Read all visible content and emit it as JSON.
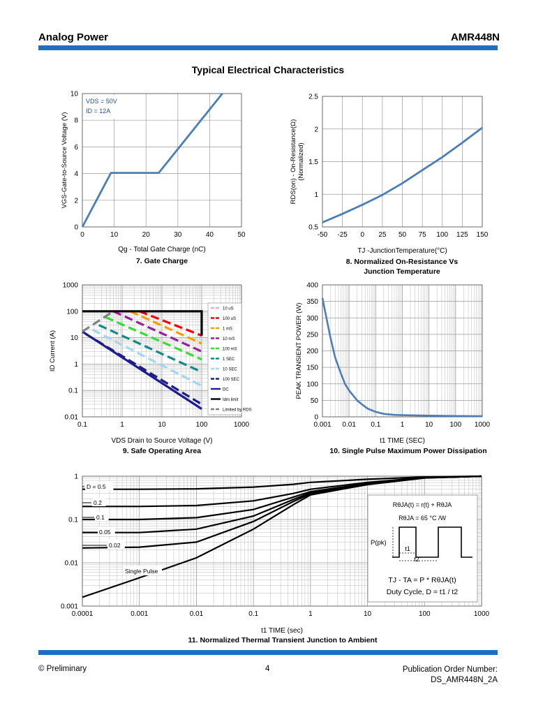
{
  "header": {
    "company": "Analog Power",
    "part": "AMR448N"
  },
  "page_title": "Typical Electrical Characteristics",
  "captions": {
    "c7": "7. Gate Charge",
    "c8_line1": "8. Normalized On-Resistance Vs",
    "c8_line2": "Junction Temperature",
    "c9": "9. Safe Operating Area",
    "c10": "10. Single Pulse Maximum Power Dissipation",
    "c11": "11. Normalized Thermal Transient Junction to Ambient"
  },
  "footer": {
    "left": "© Preliminary",
    "page": "4",
    "order_label": "Publication Order Number:",
    "order_number": "DS_AMR448N_2A"
  },
  "colors": {
    "accent": "#1f6fc0",
    "curve": "#4a7ebb",
    "grid": "#9a9a9a"
  },
  "chart_data": [
    {
      "id": "gate-charge",
      "type": "line",
      "xlabel": "Qg - Total Gate Charge (nC)",
      "ylabel": "VGS-Gate-to-Source Voltage (V)",
      "xlim": [
        0,
        50
      ],
      "ylim": [
        0,
        10
      ],
      "xticks": [
        "0",
        "10",
        "20",
        "30",
        "40",
        "50"
      ],
      "yticks": [
        "0",
        "2",
        "4",
        "6",
        "8",
        "10"
      ],
      "annotations": [
        "VDS = 50V",
        "ID = 12A"
      ],
      "series": [
        {
          "x": [
            0,
            9,
            24,
            44
          ],
          "y": [
            0,
            4.05,
            4.05,
            10
          ]
        }
      ]
    },
    {
      "id": "on-resistance",
      "type": "line",
      "xlabel": "TJ -JunctionTemperature(°C)",
      "ylabel": "RDS(on) - On-Resistance(Ω)",
      "ylabel2": "(Normalized)",
      "xlim": [
        -50,
        150
      ],
      "ylim": [
        0.5,
        2.5
      ],
      "xticks": [
        "-50",
        "-25",
        "0",
        "25",
        "50",
        "75",
        "100",
        "125",
        "150"
      ],
      "yticks": [
        "0.5",
        "1",
        "1.5",
        "2",
        "2.5"
      ],
      "series": [
        {
          "x": [
            -50,
            -25,
            0,
            25,
            50,
            75,
            100,
            125,
            150
          ],
          "y": [
            0.57,
            0.7,
            0.84,
            0.99,
            1.17,
            1.37,
            1.57,
            1.79,
            2.02
          ]
        }
      ]
    },
    {
      "id": "safe-operating-area",
      "type": "line",
      "log_x": true,
      "log_y": true,
      "xlabel": "VDS Drain to Source Voltage (V)",
      "ylabel": "ID Current (A)",
      "xlim": [
        0.1,
        1000
      ],
      "ylim": [
        0.01,
        1000
      ],
      "xticks": [
        "0.1",
        "1",
        "10",
        "100",
        "1000"
      ],
      "yticks": [
        "0.01",
        "0.1",
        "1",
        "10",
        "100",
        "1000"
      ],
      "legend_position": "right",
      "series": [
        {
          "name": "10 uS",
          "color": "#f4a6c8",
          "dash": true,
          "x": [
            0.6,
            100
          ],
          "y": [
            100,
            100
          ]
        },
        {
          "name": "100 uS",
          "color": "#ff0000",
          "dash": true,
          "x": [
            2.7,
            100
          ],
          "y": [
            100,
            12
          ]
        },
        {
          "name": "1 mS",
          "color": "#ff9a00",
          "dash": true,
          "x": [
            1.6,
            100
          ],
          "y": [
            100,
            6
          ]
        },
        {
          "name": "10 mS",
          "color": "#9b1e9b",
          "dash": true,
          "x": [
            0.6,
            100
          ],
          "y": [
            100,
            3
          ]
        },
        {
          "name": "100 mS",
          "color": "#33dd33",
          "dash": true,
          "x": [
            0.38,
            100
          ],
          "y": [
            60,
            1.5
          ]
        },
        {
          "name": "1 SEC",
          "color": "#138a8a",
          "dash": true,
          "x": [
            0.26,
            100
          ],
          "y": [
            30,
            0.5
          ]
        },
        {
          "name": "10 SEC",
          "color": "#9fd8f0",
          "dash": true,
          "x": [
            0.18,
            100
          ],
          "y": [
            20,
            0.15
          ]
        },
        {
          "name": "100 SEC",
          "color": "#1c1c8c",
          "dash": true,
          "x": [
            0.12,
            100
          ],
          "y": [
            14,
            0.03
          ]
        },
        {
          "name": "DC",
          "color": "#1c1c8c",
          "dash": false,
          "x": [
            0.1,
            100
          ],
          "y": [
            17,
            0.02
          ]
        },
        {
          "name": "Idm limit",
          "color": "#000000",
          "dash": false,
          "x": [
            0.1,
            100,
            100
          ],
          "y": [
            100,
            100,
            12
          ]
        },
        {
          "name": "Limited by RDS",
          "color": "#808080",
          "dash": true,
          "x": [
            0.1,
            0.6
          ],
          "y": [
            17,
            100
          ]
        }
      ]
    },
    {
      "id": "single-pulse-power",
      "type": "line",
      "log_x": true,
      "xlabel": "t1 TIME (SEC)",
      "ylabel": "PEAK TRANSIENT POWER (W)",
      "xlim": [
        0.001,
        1000
      ],
      "ylim": [
        0,
        400
      ],
      "xticks": [
        "0.001",
        "0.01",
        "0.1",
        "1",
        "10",
        "100",
        "1000"
      ],
      "yticks": [
        "0",
        "50",
        "100",
        "150",
        "200",
        "250",
        "300",
        "350",
        "400"
      ],
      "series": [
        {
          "x": [
            0.001,
            0.0015,
            0.002,
            0.003,
            0.005,
            0.007,
            0.01,
            0.02,
            0.03,
            0.05,
            0.1,
            0.2,
            0.5,
            1,
            10,
            100,
            1000
          ],
          "y": [
            360,
            290,
            240,
            180,
            130,
            100,
            80,
            50,
            38,
            25,
            15,
            9,
            6,
            5,
            3.5,
            2.5,
            2
          ]
        }
      ]
    },
    {
      "id": "thermal-transient",
      "type": "line",
      "log_x": true,
      "log_y": true,
      "xlabel": "t1 TIME (sec)",
      "ylabel": "",
      "xlim": [
        0.0001,
        1000
      ],
      "ylim": [
        0.001,
        1
      ],
      "xticks": [
        "0.0001",
        "0.001",
        "0.01",
        "0.1",
        "1",
        "10",
        "100",
        "1000"
      ],
      "yticks": [
        "0.001",
        "0.01",
        "0.1",
        "1"
      ],
      "series": [
        {
          "name": "D = 0.5",
          "x": [
            0.0001,
            0.001,
            0.01,
            0.1,
            0.5,
            1,
            10,
            100,
            1000
          ],
          "y": [
            0.5,
            0.5,
            0.51,
            0.56,
            0.65,
            0.72,
            0.85,
            0.96,
            1
          ]
        },
        {
          "name": "0.2",
          "x": [
            0.0001,
            0.001,
            0.01,
            0.1,
            0.5,
            1,
            10,
            100,
            1000
          ],
          "y": [
            0.2,
            0.2,
            0.21,
            0.27,
            0.4,
            0.5,
            0.72,
            0.93,
            1
          ]
        },
        {
          "name": "0.1",
          "x": [
            0.0001,
            0.001,
            0.01,
            0.1,
            0.5,
            1,
            10,
            100,
            1000
          ],
          "y": [
            0.1,
            0.1,
            0.11,
            0.17,
            0.33,
            0.44,
            0.68,
            0.92,
            1
          ]
        },
        {
          "name": "0.05",
          "x": [
            0.0001,
            0.001,
            0.01,
            0.1,
            0.5,
            1,
            10,
            100,
            1000
          ],
          "y": [
            0.05,
            0.05,
            0.06,
            0.12,
            0.29,
            0.41,
            0.66,
            0.92,
            1
          ]
        },
        {
          "name": "0.02",
          "x": [
            0.0001,
            0.001,
            0.01,
            0.1,
            0.5,
            1,
            10,
            100,
            1000
          ],
          "y": [
            0.022,
            0.023,
            0.03,
            0.09,
            0.26,
            0.39,
            0.65,
            0.91,
            1
          ]
        },
        {
          "name": "Single Pulse",
          "x": [
            0.0001,
            0.001,
            0.01,
            0.1,
            0.5,
            1,
            10,
            100,
            1000
          ],
          "y": [
            0.0016,
            0.0045,
            0.013,
            0.06,
            0.22,
            0.37,
            0.64,
            0.91,
            1
          ]
        }
      ],
      "inset": {
        "lines": [
          "RθJA(t) = r(t) + RθJA",
          "RθJA = 65 °C /W",
          "P(pk)",
          "t1",
          "t2",
          "TJ - TA = P * RθJA(t)",
          "Duty Cycle, D = t1 / t2"
        ]
      }
    }
  ]
}
